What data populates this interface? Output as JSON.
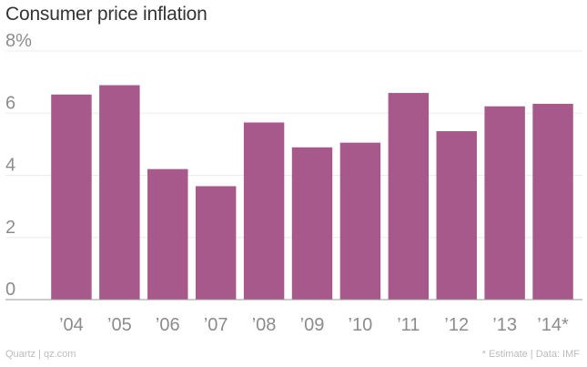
{
  "chart_data": {
    "type": "bar",
    "title": "Consumer price inflation",
    "categories": [
      "’04",
      "’05",
      "’06",
      "’07",
      "’08",
      "’09",
      "’10",
      "’11",
      "’12",
      "’13",
      "’14*"
    ],
    "values": [
      6.6,
      6.9,
      4.2,
      3.65,
      5.7,
      4.9,
      5.05,
      6.65,
      5.42,
      6.22,
      6.3
    ],
    "ylim": [
      0,
      8
    ],
    "yticks": [
      "0",
      "2",
      "4",
      "6",
      "8%"
    ],
    "ytick_values": [
      0,
      2,
      4,
      6,
      8
    ],
    "xlabel": "",
    "ylabel": "",
    "grid": true,
    "bar_color": "#a8598b"
  },
  "footer": {
    "source_left": "Quartz | qz.com",
    "source_right": "* Estimate | Data: IMF"
  },
  "colors": {
    "grid": "#ececec",
    "axis": "#9a9a9a",
    "bar": "#a8598b"
  }
}
